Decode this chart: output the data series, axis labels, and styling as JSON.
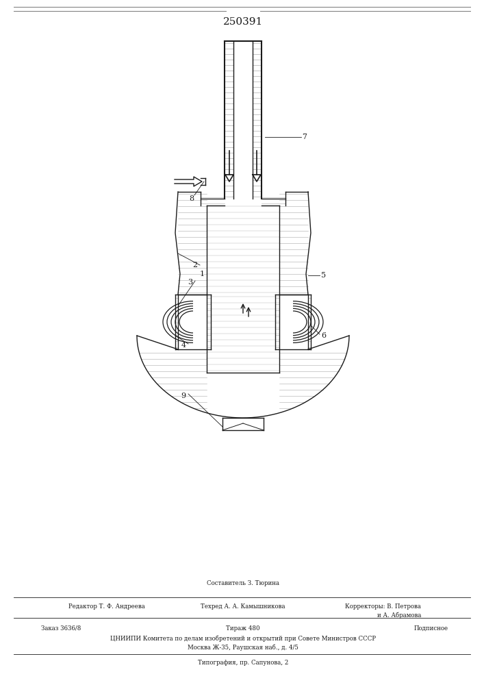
{
  "patent_number": "250391",
  "bg_color": "#ffffff",
  "line_color": "#1a1a1a",
  "footer_text_1": "Составитель З. Тюрина",
  "footer_text_2": "Редактор Т. Ф. Андреева",
  "footer_text_3": "Техред А. А. Камышникова",
  "footer_text_4": "Корректоры: В. Петрова",
  "footer_text_5": "и А. Абрамова",
  "footer_text_6": "Заказ 3636/8",
  "footer_text_7": "Тираж 480",
  "footer_text_8": "Подписное",
  "footer_text_9": "ЦНИИПИ Комитета по делам изобретений и открытий при Совете Министров СССР",
  "footer_text_10": "Москва Ж-35, Раушская наб., д. 4/5",
  "footer_text_11": "Типография, пр. Сапунова, 2"
}
